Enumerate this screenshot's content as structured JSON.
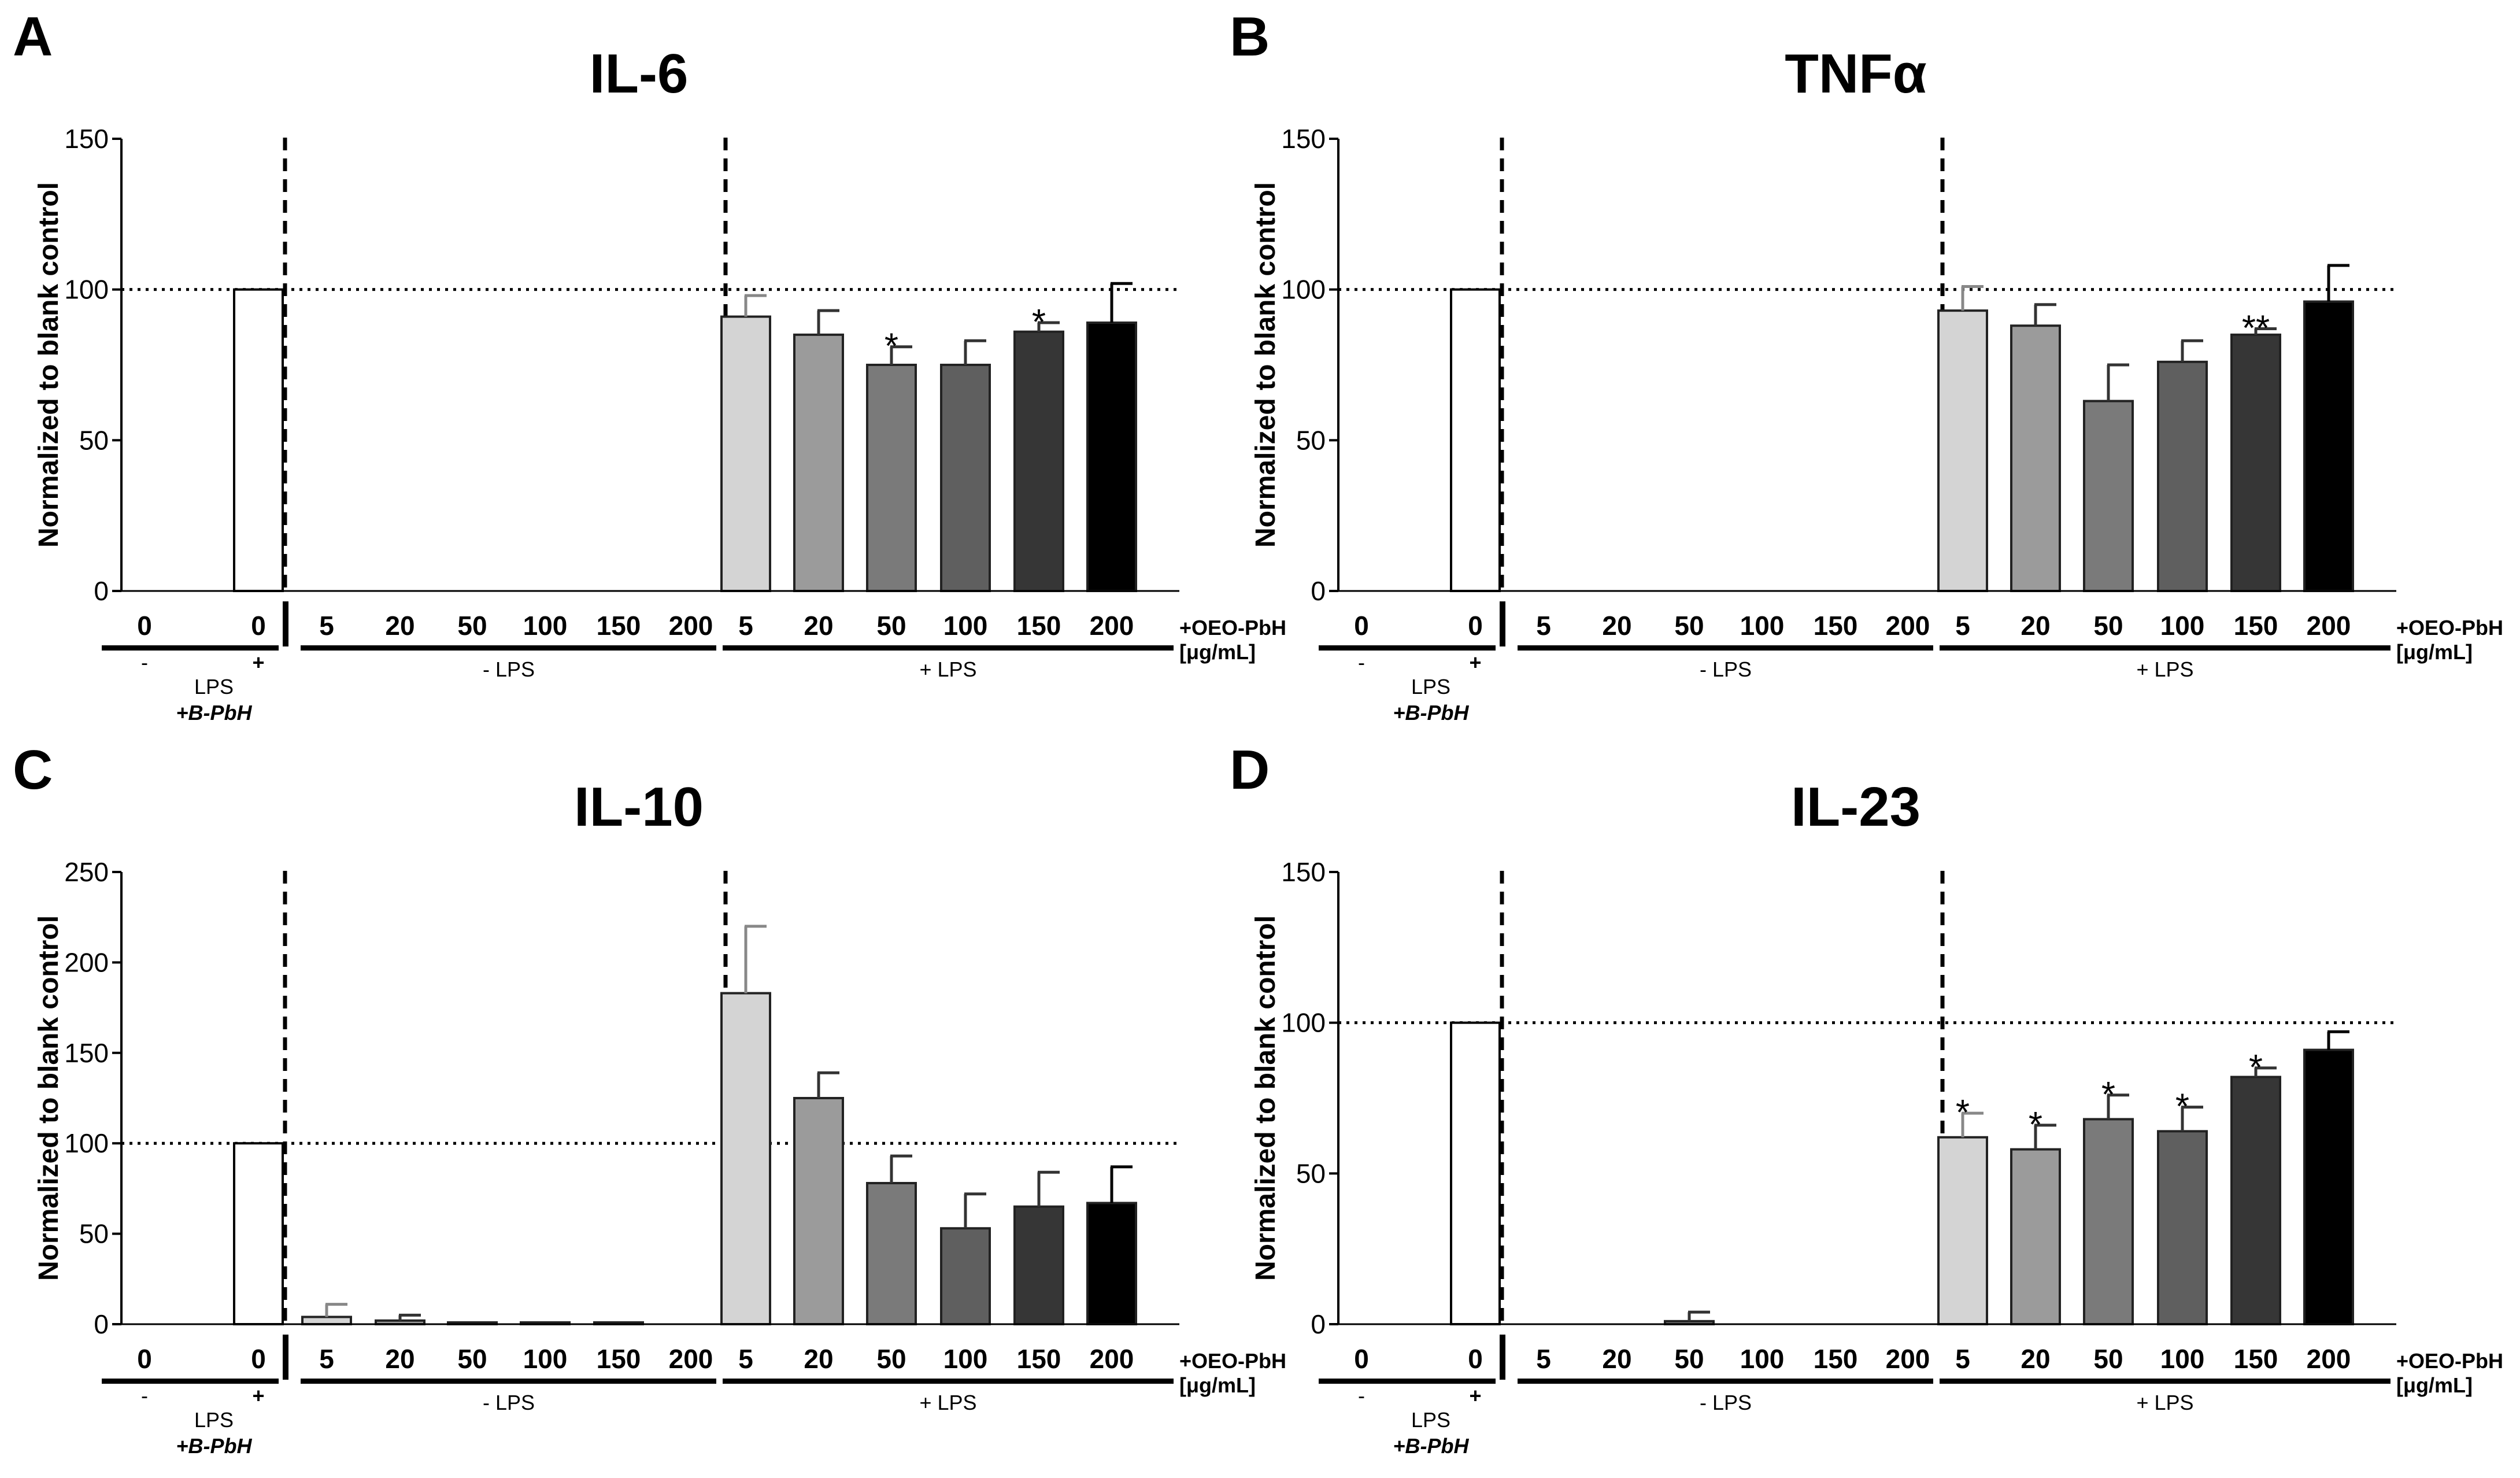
{
  "common": {
    "ylabel": "Normalized to blank control",
    "treatment_label_line1": "+OEO-PbH",
    "treatment_label_line2": "[μg/mL]",
    "ctrl_minus": "-",
    "ctrl_plus": "+",
    "ctrl_lps": "LPS",
    "ctrl_bpbh": "+B-PbH",
    "group_minus_lps": "- LPS",
    "group_plus_lps": "+ LPS"
  },
  "chart_data": [
    {
      "letter": "A",
      "type": "bar",
      "title": "IL-6",
      "ylim": [
        0,
        150
      ],
      "yticks": [
        0,
        50,
        100,
        150
      ],
      "reference_line": 100,
      "categories": [
        "0",
        "0",
        "5",
        "20",
        "50",
        "100",
        "150",
        "200",
        "5",
        "20",
        "50",
        "100",
        "150",
        "200"
      ],
      "colors": [
        "#ffffff",
        "#ffffff",
        "#ffffff",
        "#ffffff",
        "#ffffff",
        "#ffffff",
        "#ffffff",
        "#ffffff",
        "#d4d4d4",
        "#9b9b9b",
        "#7a7a7a",
        "#5f5f5f",
        "#363636",
        "#000000"
      ],
      "values": [
        0,
        100,
        0,
        0,
        0,
        0,
        0,
        0,
        91,
        85,
        75,
        75,
        86,
        89
      ],
      "errors": [
        0,
        0,
        0,
        0,
        0,
        0,
        0,
        0,
        7,
        8,
        6,
        8,
        3,
        13
      ],
      "stars": [
        "",
        "",
        "",
        "",
        "",
        "",
        "",
        "",
        "",
        "",
        "*",
        "",
        "*",
        ""
      ]
    },
    {
      "letter": "B",
      "type": "bar",
      "title": "TNFα",
      "ylim": [
        0,
        150
      ],
      "yticks": [
        0,
        50,
        100,
        150
      ],
      "reference_line": 100,
      "categories": [
        "0",
        "0",
        "5",
        "20",
        "50",
        "100",
        "150",
        "200",
        "5",
        "20",
        "50",
        "100",
        "150",
        "200"
      ],
      "colors": [
        "#ffffff",
        "#ffffff",
        "#ffffff",
        "#ffffff",
        "#ffffff",
        "#ffffff",
        "#ffffff",
        "#ffffff",
        "#d4d4d4",
        "#9b9b9b",
        "#7a7a7a",
        "#5f5f5f",
        "#363636",
        "#000000"
      ],
      "values": [
        0,
        100,
        0,
        0,
        0,
        0,
        0,
        0,
        93,
        88,
        63,
        76,
        85,
        96
      ],
      "errors": [
        0,
        0,
        0,
        0,
        0,
        0,
        0,
        0,
        8,
        7,
        12,
        7,
        2,
        12
      ],
      "stars": [
        "",
        "",
        "",
        "",
        "",
        "",
        "",
        "",
        "",
        "",
        "",
        "",
        "**",
        ""
      ]
    },
    {
      "letter": "C",
      "type": "bar",
      "title": "IL-10",
      "ylim": [
        0,
        250
      ],
      "yticks": [
        0,
        50,
        100,
        150,
        200,
        250
      ],
      "reference_line": 100,
      "categories": [
        "0",
        "0",
        "5",
        "20",
        "50",
        "100",
        "150",
        "200",
        "5",
        "20",
        "50",
        "100",
        "150",
        "200"
      ],
      "colors": [
        "#ffffff",
        "#ffffff",
        "#d4d4d4",
        "#9b9b9b",
        "#7a7a7a",
        "#5f5f5f",
        "#363636",
        "#000000",
        "#d4d4d4",
        "#9b9b9b",
        "#7a7a7a",
        "#5f5f5f",
        "#363636",
        "#000000"
      ],
      "values": [
        0,
        100,
        4,
        2,
        1,
        1,
        1,
        0,
        183,
        125,
        78,
        53,
        65,
        67
      ],
      "errors": [
        0,
        0,
        7,
        3,
        0,
        0,
        0,
        0,
        37,
        14,
        15,
        19,
        19,
        20
      ],
      "stars": [
        "",
        "",
        "",
        "",
        "",
        "",
        "",
        "",
        "",
        "",
        "",
        "",
        "",
        ""
      ]
    },
    {
      "letter": "D",
      "type": "bar",
      "title": "IL-23",
      "ylim": [
        0,
        150
      ],
      "yticks": [
        0,
        50,
        100,
        150
      ],
      "reference_line": 100,
      "categories": [
        "0",
        "0",
        "5",
        "20",
        "50",
        "100",
        "150",
        "200",
        "5",
        "20",
        "50",
        "100",
        "150",
        "200"
      ],
      "colors": [
        "#ffffff",
        "#ffffff",
        "#d4d4d4",
        "#9b9b9b",
        "#7a7a7a",
        "#5f5f5f",
        "#363636",
        "#000000",
        "#d4d4d4",
        "#9b9b9b",
        "#7a7a7a",
        "#5f5f5f",
        "#363636",
        "#000000"
      ],
      "values": [
        0,
        100,
        0,
        0,
        1,
        0,
        0,
        0,
        62,
        58,
        68,
        64,
        82,
        91
      ],
      "errors": [
        0,
        0,
        0,
        0,
        3,
        0,
        0,
        0,
        8,
        8,
        8,
        8,
        3,
        6
      ],
      "stars": [
        "",
        "",
        "",
        "",
        "",
        "",
        "",
        "",
        "*",
        "*",
        "*",
        "*",
        "*",
        ""
      ]
    }
  ]
}
